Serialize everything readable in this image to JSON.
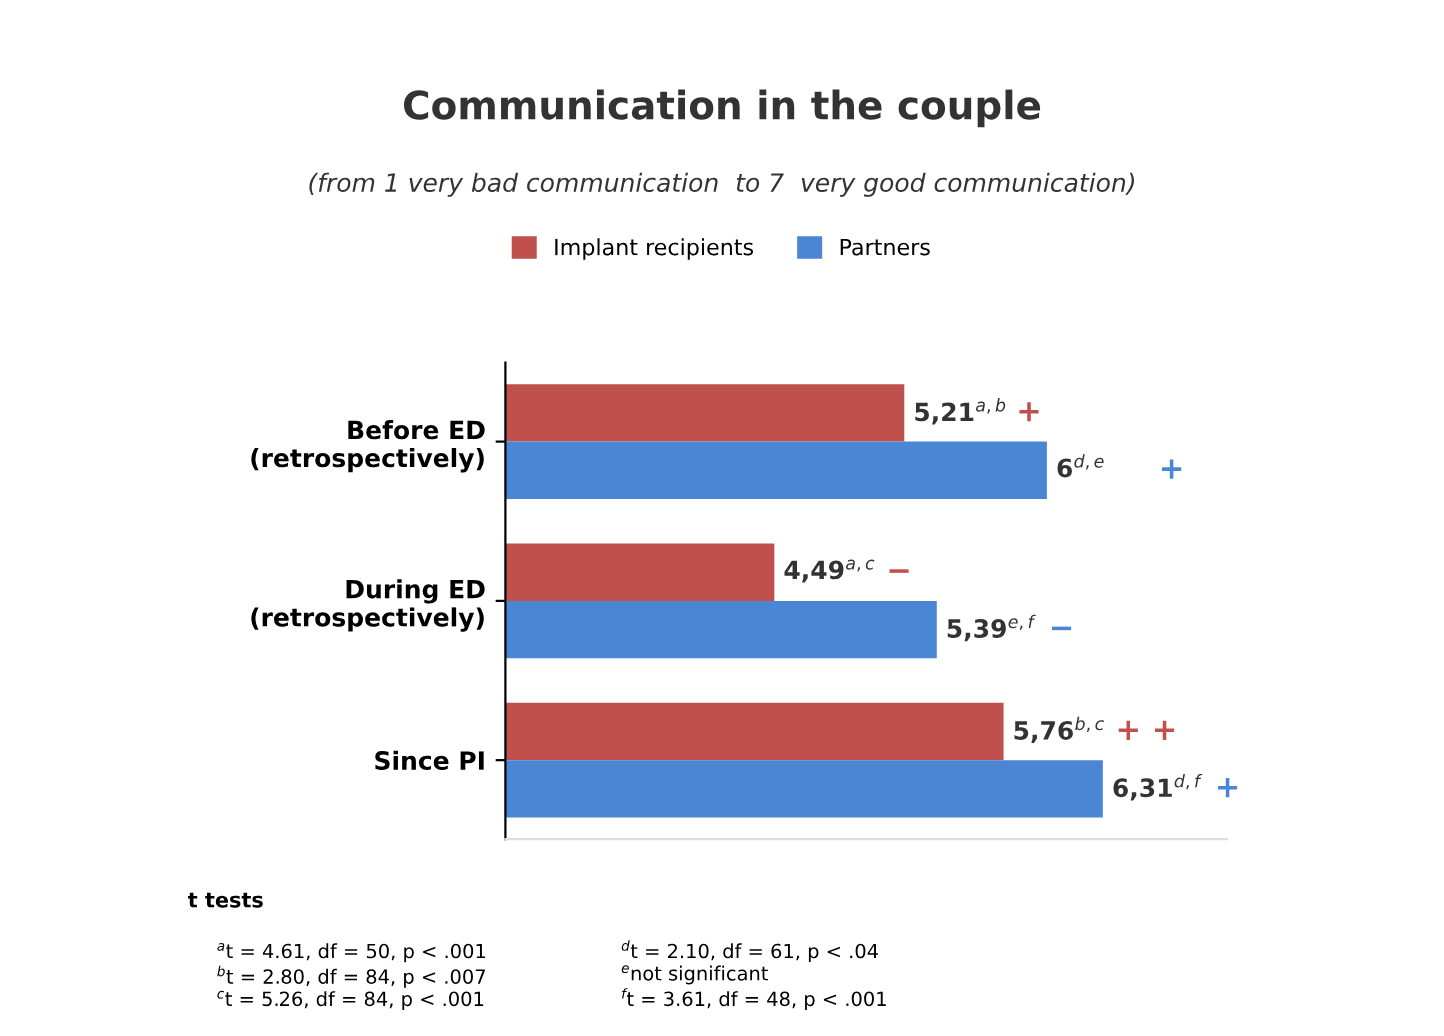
{
  "chart_data": {
    "type": "bar",
    "orientation": "horizontal",
    "title": "Communication in the couple",
    "subtitle": "(from 1 very bad communication  to 7  very good communication)",
    "categories": [
      "Before ED\n(retrospectively)",
      "During ED\n(retrospectively)",
      "Since PI"
    ],
    "series": [
      {
        "name": "Implant recipients",
        "color": "#c0504d",
        "values": [
          5.21,
          4.49,
          5.76
        ],
        "value_labels": [
          "5,21$^{a,b}$",
          "4,49$^{a,c}$",
          "5,76$^{b,c}$"
        ]
      },
      {
        "name": "Partners",
        "color": "#4a86d4",
        "values": [
          6,
          5.39,
          6.31
        ],
        "value_labels": [
          "6$^{d,e}$",
          "5,39$^{e,f}$",
          "6,31$^{d,f}$"
        ]
      }
    ],
    "xlim": [
      3,
      7
    ],
    "tick_labels": "y",
    "legend": "top",
    "grid": false,
    "annotations": [
      "t tests",
      "$^{a}$t = 4.61, df = 50, p < .001\n$^{b}$t = 2.80, df = 84, p < .007\n$^{c}$t = 5.26, df = 84, p < .001",
      "$^{d}$t = 2.10, df = 61, p < .04\n$^{e}$not significant\n$^{f}$t = 3.61, df = 48, p < .001",
      "+",
      "+",
      "−",
      "−",
      "+ +",
      "+"
    ]
  }
}
